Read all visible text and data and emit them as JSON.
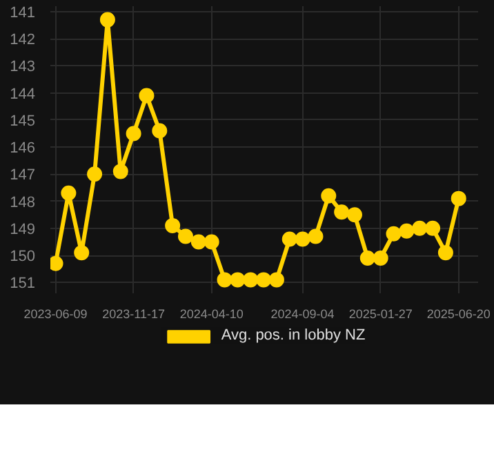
{
  "chart_data": {
    "type": "line",
    "categories": [
      "2023-06-09",
      null,
      null,
      null,
      null,
      null,
      "2023-11-17",
      null,
      null,
      null,
      null,
      null,
      "2024-04-10",
      null,
      null,
      null,
      null,
      null,
      null,
      "2024-09-04",
      null,
      null,
      null,
      null,
      null,
      "2025-01-27",
      null,
      null,
      null,
      null,
      null,
      "2025-06-20"
    ],
    "series": [
      {
        "name": "Avg. pos. in lobby NZ",
        "color": "#ffd200",
        "values": [
          150.3,
          147.7,
          149.9,
          147.0,
          141.3,
          146.9,
          145.5,
          144.1,
          145.4,
          148.9,
          149.3,
          149.5,
          149.5,
          150.9,
          150.9,
          150.9,
          150.9,
          150.9,
          149.4,
          149.4,
          149.3,
          147.8,
          148.4,
          148.5,
          150.1,
          150.1,
          149.2,
          149.1,
          149.0,
          149.0,
          149.9,
          147.9
        ]
      }
    ],
    "ylim": [
      151.4,
      140.8
    ],
    "yticks": [
      141,
      142,
      143,
      144,
      145,
      146,
      147,
      148,
      149,
      150,
      151
    ],
    "grid": true,
    "legend": "bottom",
    "marker": "circle",
    "line_style": "solid"
  }
}
